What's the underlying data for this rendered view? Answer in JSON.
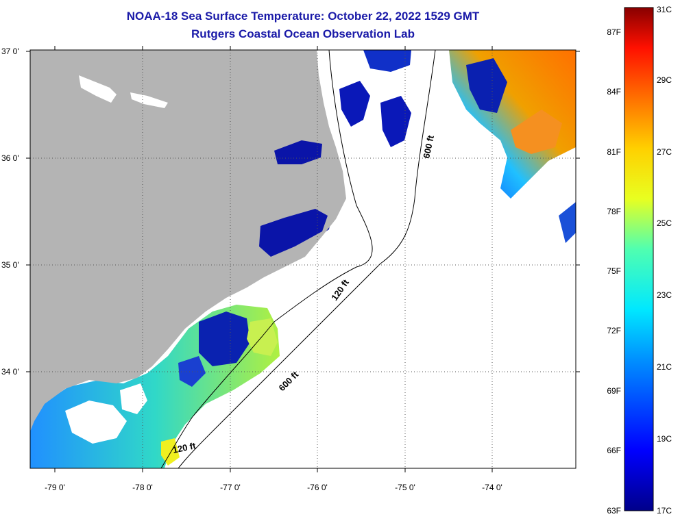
{
  "title": {
    "line1": "NOAA-18 Sea Surface Temperature:  October 22, 2022 1529 GMT",
    "line2": "Rutgers Coastal Ocean Observation Lab"
  },
  "colors": {
    "title": "#1a1aa8",
    "land": "#b4b4b4",
    "cloud": "#ffffff",
    "cold": "#0a0a9a",
    "warm": "#f07a10"
  },
  "map": {
    "lon_ticks": [
      "-79 0'",
      "-78 0'",
      "-77 0'",
      "-76 0'",
      "-75 0'",
      "-74 0'"
    ],
    "lat_ticks": [
      "37 0'",
      "36 0'",
      "35 0'",
      "34 0'"
    ],
    "lon_range": [
      -79.3,
      -73.0
    ],
    "lat_range": [
      33.1,
      37.0
    ],
    "contour_labels": [
      "600 ft",
      "120 ft",
      "600 ft",
      "120 ft"
    ]
  },
  "colorbar": {
    "celsius": [
      "31C",
      "29C",
      "27C",
      "25C",
      "23C",
      "21C",
      "19C",
      "17C"
    ],
    "fahrenheit": [
      "87F",
      "84F",
      "81F",
      "78F",
      "75F",
      "72F",
      "69F",
      "66F",
      "63F"
    ]
  }
}
